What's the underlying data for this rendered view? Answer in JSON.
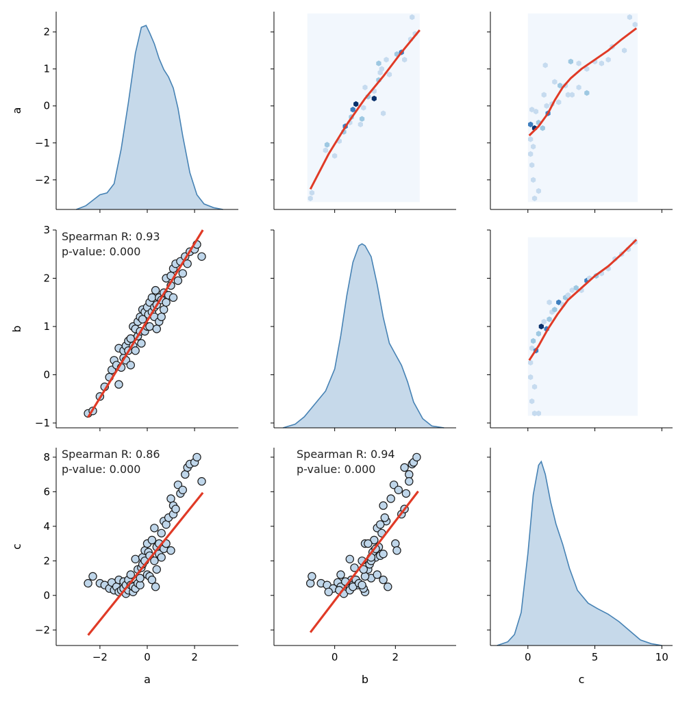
{
  "chart_data": {
    "type": "pairgrid",
    "variables": [
      "a",
      "b",
      "c"
    ],
    "axis_labels": {
      "a": "a",
      "b": "b",
      "c": "c"
    },
    "ticks": {
      "a": [
        -2,
        -1,
        0,
        1,
        2
      ],
      "b": [
        -1,
        0,
        1,
        2,
        3
      ],
      "c": [
        -2,
        0,
        2,
        4,
        6,
        8
      ],
      "a_x": [
        -2,
        0,
        2
      ],
      "b_x": [
        0,
        2
      ],
      "c_x": [
        0,
        5,
        10
      ]
    },
    "ranges": {
      "a": [
        -2.8,
        2.55
      ],
      "b": [
        -1.1,
        3.0
      ],
      "c": [
        -2.9,
        8.55
      ],
      "a_x": [
        -3.85,
        3.85
      ],
      "b_x": [
        -2.0,
        4.0
      ],
      "c_x": [
        -2.8,
        10.8
      ]
    },
    "colors": {
      "kde_line": "#4682b4",
      "kde_fill": "#c6d9ea",
      "regression": "#e03a26",
      "point_fill": "#bfd6ea",
      "point_edge": "#1a1a1a",
      "hex_light": "#f2f7fd",
      "hex_mid": "#9ec8e2",
      "hex_dark": "#08306b"
    },
    "diagonal_kde": {
      "a": {
        "x": [
          -3.0,
          -2.6,
          -2.3,
          -2.0,
          -1.7,
          -1.4,
          -1.1,
          -0.8,
          -0.5,
          -0.25,
          -0.05,
          0.1,
          0.3,
          0.5,
          0.7,
          0.9,
          1.1,
          1.3,
          1.5,
          1.8,
          2.1,
          2.4,
          2.8,
          3.2
        ],
        "density": [
          0.0,
          0.02,
          0.05,
          0.08,
          0.09,
          0.14,
          0.33,
          0.58,
          0.85,
          0.99,
          1.0,
          0.96,
          0.9,
          0.82,
          0.76,
          0.72,
          0.66,
          0.55,
          0.4,
          0.2,
          0.08,
          0.03,
          0.01,
          0.0
        ]
      },
      "b": {
        "x": [
          -1.7,
          -1.3,
          -1.0,
          -0.6,
          -0.3,
          0.0,
          0.2,
          0.4,
          0.6,
          0.8,
          0.9,
          1.0,
          1.2,
          1.4,
          1.6,
          1.8,
          2.0,
          2.2,
          2.4,
          2.6,
          2.9,
          3.2,
          3.6
        ],
        "density": [
          0.0,
          0.02,
          0.06,
          0.14,
          0.2,
          0.32,
          0.5,
          0.72,
          0.9,
          0.99,
          1.0,
          0.99,
          0.93,
          0.78,
          0.6,
          0.46,
          0.4,
          0.34,
          0.25,
          0.14,
          0.05,
          0.01,
          0.0
        ]
      },
      "c": {
        "x": [
          -2.3,
          -1.5,
          -1.0,
          -0.5,
          0.0,
          0.4,
          0.8,
          1.0,
          1.3,
          1.7,
          2.1,
          2.6,
          3.1,
          3.7,
          4.5,
          5.2,
          6.0,
          6.8,
          7.6,
          8.4,
          9.2,
          10.0
        ],
        "density": [
          0.0,
          0.02,
          0.06,
          0.18,
          0.5,
          0.82,
          0.98,
          1.0,
          0.93,
          0.78,
          0.66,
          0.55,
          0.42,
          0.3,
          0.23,
          0.2,
          0.17,
          0.13,
          0.08,
          0.03,
          0.01,
          0.0
        ]
      }
    },
    "scatter_points": {
      "a": [
        -2.5,
        -2.3,
        -2.0,
        -1.8,
        -1.6,
        -1.5,
        -1.4,
        -1.3,
        -1.2,
        -1.2,
        -1.1,
        -1.0,
        -1.0,
        -0.9,
        -0.9,
        -0.8,
        -0.8,
        -0.7,
        -0.7,
        -0.6,
        -0.6,
        -0.5,
        -0.5,
        -0.4,
        -0.4,
        -0.3,
        -0.3,
        -0.25,
        -0.2,
        -0.2,
        -0.1,
        -0.1,
        0.0,
        0.0,
        0.05,
        0.1,
        0.1,
        0.2,
        0.2,
        0.3,
        0.3,
        0.35,
        0.4,
        0.4,
        0.5,
        0.5,
        0.6,
        0.6,
        0.7,
        0.7,
        0.8,
        0.8,
        0.9,
        1.0,
        1.0,
        1.1,
        1.1,
        1.2,
        1.3,
        1.4,
        1.5,
        1.6,
        1.7,
        1.8,
        2.0,
        2.1,
        2.3
      ],
      "b": [
        -0.8,
        -0.75,
        -0.45,
        -0.25,
        -0.05,
        0.1,
        0.3,
        0.2,
        -0.2,
        0.55,
        0.15,
        0.35,
        0.5,
        0.6,
        0.3,
        0.7,
        0.5,
        0.75,
        0.2,
        1.0,
        0.6,
        0.95,
        0.5,
        1.1,
        0.8,
        0.9,
        1.2,
        0.65,
        1.15,
        1.35,
        1.3,
        0.9,
        1.4,
        1.0,
        1.25,
        1.5,
        1.0,
        1.3,
        1.6,
        1.2,
        1.4,
        1.75,
        1.45,
        0.95,
        1.6,
        1.1,
        1.55,
        1.2,
        1.7,
        1.35,
        2.0,
        1.5,
        1.65,
        2.05,
        1.85,
        1.6,
        2.2,
        2.3,
        1.95,
        2.35,
        2.1,
        2.45,
        2.3,
        2.55,
        2.6,
        2.7,
        2.45
      ],
      "c": [
        0.7,
        1.1,
        0.7,
        0.6,
        0.4,
        0.75,
        0.3,
        0.5,
        0.2,
        0.9,
        0.3,
        0.8,
        0.4,
        0.6,
        0.1,
        0.9,
        0.3,
        0.6,
        1.2,
        0.2,
        0.5,
        0.4,
        2.1,
        1.5,
        0.7,
        0.6,
        1.0,
        1.6,
        1.8,
        2.2,
        2.6,
        2.0,
        1.2,
        3.0,
        2.5,
        2.3,
        1.1,
        3.2,
        0.9,
        2.0,
        3.9,
        0.5,
        2.8,
        1.5,
        2.4,
        3.0,
        3.6,
        2.2,
        4.3,
        2.7,
        3.0,
        4.1,
        4.5,
        2.6,
        5.6,
        5.2,
        4.7,
        5.0,
        6.4,
        5.9,
        6.1,
        7.0,
        7.4,
        7.6,
        7.7,
        8.0,
        6.6
      ]
    },
    "regression": {
      "b_on_a": {
        "slope": 0.8,
        "intercept": 1.12,
        "x_range": [
          -2.5,
          2.35
        ]
      },
      "c_on_a": {
        "slope": 1.7,
        "intercept": 1.95,
        "x_range": [
          -2.5,
          2.35
        ]
      },
      "c_on_b": {
        "slope": 2.3,
        "intercept": -0.3,
        "x_range": [
          -0.8,
          2.75
        ]
      }
    },
    "lowess": {
      "a_vs_b": {
        "x": [
          -0.8,
          -0.2,
          0.4,
          1.0,
          1.6,
          2.2,
          2.8
        ],
        "y": [
          -2.25,
          -1.3,
          -0.5,
          0.2,
          0.8,
          1.45,
          2.05
        ]
      },
      "a_vs_c": {
        "x": [
          0.1,
          0.8,
          1.5,
          2.0,
          2.6,
          3.2,
          4.0,
          5.0,
          6.0,
          7.0,
          8.1
        ],
        "y": [
          -0.8,
          -0.55,
          -0.2,
          0.15,
          0.5,
          0.75,
          1.0,
          1.25,
          1.5,
          1.8,
          2.1
        ]
      },
      "b_vs_c": {
        "x": [
          0.1,
          0.8,
          1.5,
          2.2,
          3.0,
          4.0,
          5.0,
          6.0,
          7.0,
          8.1
        ],
        "y": [
          0.3,
          0.6,
          0.95,
          1.25,
          1.55,
          1.8,
          2.05,
          2.25,
          2.5,
          2.8
        ]
      }
    },
    "hexbin_extent": {
      "a_vs_b": {
        "x": [
          -0.9,
          2.8
        ],
        "y": [
          -2.6,
          2.5
        ]
      },
      "a_vs_c": {
        "x": [
          0.0,
          8.2
        ],
        "y": [
          -2.6,
          2.5
        ]
      },
      "b_vs_c": {
        "x": [
          0.0,
          8.2
        ],
        "y": [
          -0.85,
          2.85
        ]
      }
    },
    "hexbin_cells": {
      "a_vs_b": [
        [
          -0.8,
          -2.5,
          1
        ],
        [
          -0.75,
          -2.35,
          1
        ],
        [
          -0.3,
          -1.2,
          1
        ],
        [
          -0.25,
          -1.05,
          2
        ],
        [
          0.0,
          -1.35,
          1
        ],
        [
          0.15,
          -0.95,
          1
        ],
        [
          0.3,
          -0.7,
          2
        ],
        [
          0.35,
          -0.55,
          3
        ],
        [
          0.5,
          -0.45,
          1
        ],
        [
          0.55,
          -0.3,
          2
        ],
        [
          0.6,
          -0.1,
          3
        ],
        [
          0.7,
          0.05,
          4
        ],
        [
          0.85,
          -0.5,
          1
        ],
        [
          0.9,
          -0.35,
          2
        ],
        [
          0.95,
          -0.05,
          1
        ],
        [
          1.1,
          0.25,
          2
        ],
        [
          1.3,
          0.2,
          4
        ],
        [
          1.3,
          0.4,
          1
        ],
        [
          1.45,
          0.7,
          2
        ],
        [
          1.55,
          1.0,
          1
        ],
        [
          1.45,
          1.15,
          2
        ],
        [
          1.5,
          0.9,
          1
        ],
        [
          1.8,
          0.85,
          1
        ],
        [
          1.7,
          1.25,
          1
        ],
        [
          2.05,
          1.4,
          2
        ],
        [
          2.2,
          1.45,
          3
        ],
        [
          2.3,
          1.25,
          1
        ],
        [
          2.5,
          1.8,
          1
        ],
        [
          2.55,
          2.4,
          1
        ],
        [
          2.65,
          1.95,
          1
        ],
        [
          1.6,
          -0.2,
          1
        ],
        [
          1.0,
          0.5,
          1
        ]
      ],
      "a_vs_c": [
        [
          0.2,
          -0.5,
          3
        ],
        [
          0.5,
          -0.6,
          4
        ],
        [
          0.8,
          -0.45,
          2
        ],
        [
          1.1,
          -0.6,
          2
        ],
        [
          0.3,
          -0.1,
          1
        ],
        [
          0.6,
          -0.15,
          1
        ],
        [
          0.2,
          -0.9,
          1
        ],
        [
          0.4,
          -1.1,
          1
        ],
        [
          0.2,
          -1.3,
          1
        ],
        [
          0.3,
          -1.6,
          1
        ],
        [
          1.5,
          -0.2,
          3
        ],
        [
          1.8,
          0.05,
          1
        ],
        [
          2.3,
          0.1,
          1
        ],
        [
          2.4,
          0.55,
          2
        ],
        [
          2.8,
          0.55,
          1
        ],
        [
          3.0,
          0.3,
          1
        ],
        [
          3.3,
          0.3,
          1
        ],
        [
          3.8,
          0.5,
          1
        ],
        [
          4.4,
          0.35,
          2
        ],
        [
          5.0,
          1.2,
          1
        ],
        [
          4.4,
          1.0,
          1
        ],
        [
          6.0,
          1.25,
          1
        ],
        [
          5.5,
          1.15,
          1
        ],
        [
          3.8,
          1.15,
          1
        ],
        [
          2.0,
          0.65,
          1
        ],
        [
          1.4,
          0.0,
          1
        ],
        [
          6.3,
          1.6,
          1
        ],
        [
          7.2,
          1.5,
          1
        ],
        [
          8.0,
          2.2,
          1
        ],
        [
          7.6,
          2.4,
          1
        ],
        [
          1.3,
          1.1,
          1
        ],
        [
          1.2,
          0.3,
          1
        ],
        [
          0.4,
          -2.0,
          1
        ],
        [
          0.8,
          -2.3,
          1
        ],
        [
          0.5,
          -2.5,
          1
        ],
        [
          3.2,
          1.2,
          2
        ]
      ],
      "b_vs_c": [
        [
          0.2,
          0.25,
          1
        ],
        [
          0.3,
          0.55,
          1
        ],
        [
          0.4,
          0.7,
          2
        ],
        [
          0.6,
          0.5,
          3
        ],
        [
          0.8,
          0.85,
          2
        ],
        [
          1.0,
          1.0,
          4
        ],
        [
          1.2,
          1.1,
          1
        ],
        [
          1.4,
          0.95,
          3
        ],
        [
          1.6,
          1.15,
          2
        ],
        [
          1.8,
          1.3,
          1
        ],
        [
          2.0,
          1.35,
          2
        ],
        [
          2.3,
          1.5,
          3
        ],
        [
          2.6,
          1.45,
          1
        ],
        [
          2.8,
          1.6,
          2
        ],
        [
          3.0,
          1.65,
          1
        ],
        [
          3.3,
          1.75,
          1
        ],
        [
          3.6,
          1.8,
          2
        ],
        [
          4.0,
          1.75,
          1
        ],
        [
          4.4,
          1.95,
          3
        ],
        [
          4.6,
          2.0,
          1
        ],
        [
          5.1,
          2.05,
          2
        ],
        [
          5.5,
          2.1,
          1
        ],
        [
          6.0,
          2.2,
          1
        ],
        [
          6.5,
          2.4,
          1
        ],
        [
          7.0,
          2.5,
          1
        ],
        [
          7.5,
          2.6,
          1
        ],
        [
          8.0,
          2.75,
          1
        ],
        [
          0.2,
          -0.05,
          1
        ],
        [
          0.5,
          -0.25,
          1
        ],
        [
          0.3,
          -0.55,
          1
        ],
        [
          0.8,
          -0.8,
          1
        ],
        [
          0.5,
          -0.8,
          1
        ],
        [
          1.6,
          1.5,
          1
        ]
      ]
    },
    "annotations": {
      "b_vs_a": {
        "line1": "Spearman R: 0.93",
        "line2": "p-value: 0.000"
      },
      "c_vs_a": {
        "line1": "Spearman R: 0.86",
        "line2": "p-value: 0.000"
      },
      "c_vs_b": {
        "line1": "Spearman R: 0.94",
        "line2": "p-value: 0.000"
      }
    }
  }
}
